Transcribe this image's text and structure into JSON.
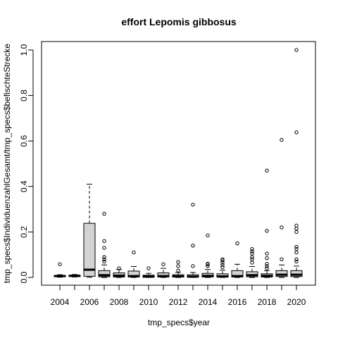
{
  "chart_data": {
    "type": "boxplot",
    "title": "effort Lepomis gibbosus",
    "xlabel": "tmp_specs$year",
    "ylabel": "tmp_specs$IndividuenzahlGesamt/tmp_specs$befischteStrecke",
    "ylim": [
      0,
      1.0
    ],
    "y_ticks": [
      0.0,
      0.2,
      0.4,
      0.6,
      0.8,
      1.0
    ],
    "y_tick_labels": [
      "0.0",
      "0.2",
      "0.4",
      "0.6",
      "0.8",
      "1.0"
    ],
    "x_tick_labels": [
      "2004",
      "2006",
      "2008",
      "2010",
      "2012",
      "2014",
      "2016",
      "2018",
      "2020"
    ],
    "box_fill": "#d3d3d3",
    "grid": false,
    "boxes": [
      {
        "year": "2004",
        "q1": 0.003,
        "median": 0.006,
        "q3": 0.009,
        "whisker_low": 0.001,
        "whisker_high": 0.012,
        "outliers": [
          0.058
        ]
      },
      {
        "year": "2005",
        "q1": 0.004,
        "median": 0.007,
        "q3": 0.01,
        "whisker_low": 0.002,
        "whisker_high": 0.013,
        "outliers": []
      },
      {
        "year": "2006",
        "q1": 0.005,
        "median": 0.034,
        "q3": 0.238,
        "whisker_low": 0.001,
        "whisker_high": 0.41,
        "outliers": []
      },
      {
        "year": "2007",
        "q1": 0.003,
        "median": 0.01,
        "q3": 0.03,
        "whisker_low": 0.0,
        "whisker_high": 0.055,
        "outliers": [
          0.07,
          0.08,
          0.09,
          0.13,
          0.16,
          0.28
        ]
      },
      {
        "year": "2008",
        "q1": 0.002,
        "median": 0.008,
        "q3": 0.02,
        "whisker_low": 0.0,
        "whisker_high": 0.035,
        "outliers": [
          0.04
        ]
      },
      {
        "year": "2009",
        "q1": 0.002,
        "median": 0.006,
        "q3": 0.028,
        "whisker_low": 0.0,
        "whisker_high": 0.048,
        "outliers": [
          0.11
        ]
      },
      {
        "year": "2010",
        "q1": 0.001,
        "median": 0.004,
        "q3": 0.01,
        "whisker_low": 0.0,
        "whisker_high": 0.018,
        "outliers": [
          0.04
        ]
      },
      {
        "year": "2011",
        "q1": 0.002,
        "median": 0.006,
        "q3": 0.02,
        "whisker_low": 0.0,
        "whisker_high": 0.04,
        "outliers": [
          0.058
        ]
      },
      {
        "year": "2012",
        "q1": 0.002,
        "median": 0.005,
        "q3": 0.012,
        "whisker_low": 0.0,
        "whisker_high": 0.022,
        "outliers": [
          0.03,
          0.05,
          0.068
        ]
      },
      {
        "year": "2013",
        "q1": 0.001,
        "median": 0.004,
        "q3": 0.012,
        "whisker_low": 0.0,
        "whisker_high": 0.022,
        "outliers": [
          0.05,
          0.14,
          0.32
        ]
      },
      {
        "year": "2014",
        "q1": 0.002,
        "median": 0.007,
        "q3": 0.018,
        "whisker_low": 0.0,
        "whisker_high": 0.035,
        "outliers": [
          0.05,
          0.058,
          0.06,
          0.185
        ]
      },
      {
        "year": "2015",
        "q1": 0.001,
        "median": 0.005,
        "q3": 0.016,
        "whisker_low": 0.0,
        "whisker_high": 0.032,
        "outliers": [
          0.045,
          0.055,
          0.065,
          0.075,
          0.08
        ]
      },
      {
        "year": "2016",
        "q1": 0.002,
        "median": 0.006,
        "q3": 0.03,
        "whisker_low": 0.0,
        "whisker_high": 0.058,
        "outliers": [
          0.15
        ]
      },
      {
        "year": "2017",
        "q1": 0.003,
        "median": 0.01,
        "q3": 0.025,
        "whisker_low": 0.0,
        "whisker_high": 0.048,
        "outliers": [
          0.065,
          0.08,
          0.09,
          0.105,
          0.115,
          0.125
        ]
      },
      {
        "year": "2018",
        "q1": 0.002,
        "median": 0.007,
        "q3": 0.016,
        "whisker_low": 0.0,
        "whisker_high": 0.03,
        "outliers": [
          0.04,
          0.05,
          0.06,
          0.085,
          0.105,
          0.205,
          0.47
        ]
      },
      {
        "year": "2019",
        "q1": 0.004,
        "median": 0.012,
        "q3": 0.03,
        "whisker_low": 0.0,
        "whisker_high": 0.055,
        "outliers": [
          0.08,
          0.22,
          0.605
        ]
      },
      {
        "year": "2020",
        "q1": 0.004,
        "median": 0.012,
        "q3": 0.03,
        "whisker_low": 0.0,
        "whisker_high": 0.05,
        "outliers": [
          0.07,
          0.08,
          0.11,
          0.125,
          0.135,
          0.2,
          0.215,
          0.228,
          0.638,
          1.0
        ]
      }
    ]
  }
}
